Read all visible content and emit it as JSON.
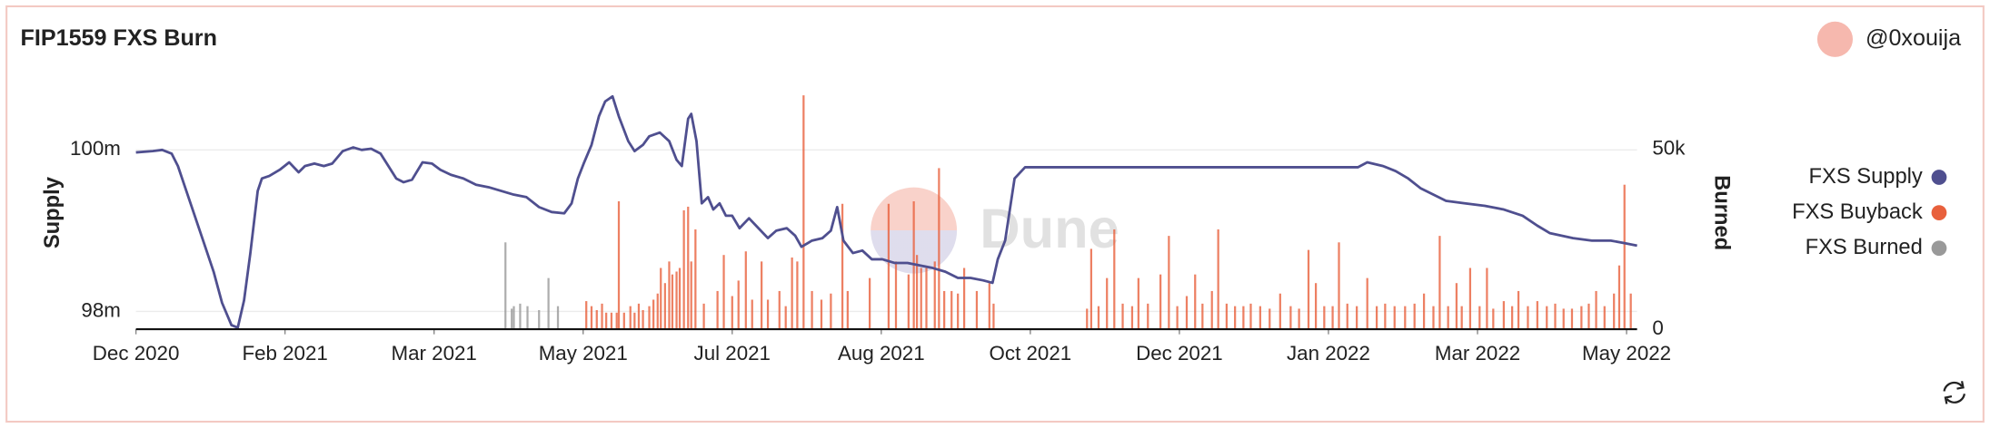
{
  "chart_data": {
    "type": "combo",
    "title": "FIP1559 FXS Burn",
    "author": "@0xouija",
    "watermark": "Dune",
    "ylabel": "Supply",
    "y2label": "Burned",
    "legend": "right",
    "grid": true,
    "xlim": [
      2020.92,
      2022.35
    ],
    "xticks": [
      {
        "value": 2020.92,
        "label": "Dec 2020"
      },
      {
        "value": 2021.062,
        "label": "Feb 2021"
      },
      {
        "value": 2021.204,
        "label": "Mar 2021"
      },
      {
        "value": 2021.346,
        "label": "May 2021"
      },
      {
        "value": 2021.488,
        "label": "Jul 2021"
      },
      {
        "value": 2021.63,
        "label": "Aug 2021"
      },
      {
        "value": 2021.772,
        "label": "Oct 2021"
      },
      {
        "value": 2021.914,
        "label": "Dec 2021"
      },
      {
        "value": 2022.056,
        "label": "Jan 2022"
      },
      {
        "value": 2022.198,
        "label": "Mar 2022"
      },
      {
        "value": 2022.34,
        "label": "May 2022"
      }
    ],
    "ylim": [
      97.78,
      100.68
    ],
    "yticks": [
      {
        "value": 98,
        "label": "98m"
      },
      {
        "value": 100,
        "label": "100m"
      }
    ],
    "y2lim": [
      0,
      65000
    ],
    "y2ticks": [
      0,
      {
        "value": 50000,
        "label": "50k"
      }
    ],
    "series": [
      {
        "name": "FXS Supply",
        "type": "line",
        "color": "#4f4f8f",
        "x": [
          2020.92,
          2020.936,
          2020.945,
          2020.954,
          2020.96,
          2020.966,
          2020.974,
          2020.984,
          2020.994,
          2021.002,
          2021.011,
          2021.017,
          2021.023,
          2021.029,
          2021.036,
          2021.04,
          2021.047,
          2021.057,
          2021.066,
          2021.075,
          2021.081,
          2021.09,
          2021.099,
          2021.107,
          2021.117,
          2021.127,
          2021.135,
          2021.144,
          2021.153,
          2021.159,
          2021.168,
          2021.175,
          2021.183,
          2021.193,
          2021.202,
          2021.21,
          2021.22,
          2021.232,
          2021.244,
          2021.256,
          2021.268,
          2021.28,
          2021.292,
          2021.304,
          2021.316,
          2021.328,
          2021.335,
          2021.341,
          2021.347,
          2021.354,
          2021.361,
          2021.367,
          2021.374,
          2021.38,
          2021.389,
          2021.395,
          2021.403,
          2021.409,
          2021.419,
          2021.428,
          2021.435,
          2021.44,
          2021.446,
          2021.449,
          2021.454,
          2021.459,
          2021.465,
          2021.47,
          2021.476,
          2021.482,
          2021.488,
          2021.495,
          2021.504,
          2021.513,
          2021.522,
          2021.53,
          2021.54,
          2021.548,
          2021.554,
          2021.564,
          2021.574,
          2021.582,
          2021.588,
          2021.594,
          2021.603,
          2021.612,
          2021.621,
          2021.631,
          2021.643,
          2021.655,
          2021.667,
          2021.679,
          2021.691,
          2021.703,
          2021.715,
          2021.727,
          2021.736,
          2021.741,
          2021.748,
          2021.757,
          2021.767,
          2021.818,
          2021.878,
          2021.951,
          2022.035,
          2022.084,
          2022.093,
          2022.108,
          2022.12,
          2022.132,
          2022.144,
          2022.156,
          2022.168,
          2022.186,
          2022.205,
          2022.223,
          2022.241,
          2022.255,
          2022.267,
          2022.289,
          2022.307,
          2022.325,
          2022.338,
          2022.35
        ],
        "values": [
          99.969,
          99.985,
          100.0,
          99.954,
          99.8,
          99.569,
          99.262,
          98.877,
          98.492,
          98.108,
          97.831,
          97.8,
          98.138,
          98.723,
          99.492,
          99.646,
          99.677,
          99.754,
          99.846,
          99.723,
          99.8,
          99.831,
          99.8,
          99.831,
          99.985,
          100.031,
          100.0,
          100.015,
          99.954,
          99.831,
          99.646,
          99.6,
          99.631,
          99.846,
          99.831,
          99.754,
          99.692,
          99.646,
          99.569,
          99.538,
          99.492,
          99.446,
          99.415,
          99.292,
          99.231,
          99.215,
          99.338,
          99.646,
          99.846,
          100.062,
          100.415,
          100.6,
          100.662,
          100.415,
          100.108,
          99.985,
          100.062,
          100.169,
          100.215,
          100.108,
          99.877,
          99.8,
          100.385,
          100.446,
          100.108,
          99.338,
          99.415,
          99.262,
          99.338,
          99.185,
          99.185,
          99.031,
          99.154,
          99.031,
          98.908,
          99.0,
          99.031,
          98.938,
          98.8,
          98.877,
          98.908,
          99.0,
          99.292,
          98.877,
          98.723,
          98.754,
          98.646,
          98.646,
          98.6,
          98.6,
          98.569,
          98.538,
          98.492,
          98.415,
          98.415,
          98.385,
          98.354,
          98.646,
          98.877,
          99.646,
          99.785,
          99.785,
          99.785,
          99.785,
          99.785,
          99.785,
          99.846,
          99.8,
          99.738,
          99.646,
          99.523,
          99.446,
          99.369,
          99.338,
          99.308,
          99.262,
          99.185,
          99.062,
          98.969,
          98.908,
          98.877,
          98.877,
          98.846,
          98.815
        ]
      },
      {
        "name": "FXS Buyback",
        "type": "bar",
        "axis": "y2",
        "color": "#e8603c",
        "x": [
          2021.349,
          2021.354,
          2021.359,
          2021.364,
          2021.368,
          2021.373,
          2021.378,
          2021.38,
          2021.385,
          2021.391,
          2021.395,
          2021.399,
          2021.403,
          2021.409,
          2021.413,
          2021.417,
          2021.42,
          2021.424,
          2021.428,
          2021.431,
          2021.435,
          2021.438,
          2021.442,
          2021.446,
          2021.449,
          2021.453,
          2021.461,
          2021.474,
          2021.48,
          2021.488,
          2021.494,
          2021.501,
          2021.507,
          2021.516,
          2021.522,
          2021.533,
          2021.539,
          2021.545,
          2021.55,
          2021.556,
          2021.564,
          2021.573,
          2021.582,
          2021.593,
          2021.598,
          2021.619,
          2021.637,
          2021.644,
          2021.656,
          2021.661,
          2021.664,
          2021.668,
          2021.673,
          2021.681,
          2021.685,
          2021.69,
          2021.697,
          2021.703,
          2021.709,
          2021.721,
          2021.733,
          2021.737,
          2021.826,
          2021.83,
          2021.837,
          2021.845,
          2021.852,
          2021.86,
          2021.869,
          2021.875,
          2021.884,
          2021.896,
          2021.904,
          2021.912,
          2021.921,
          2021.929,
          2021.936,
          2021.945,
          2021.951,
          2021.959,
          2021.967,
          2021.975,
          2021.982,
          2021.991,
          2022.0,
          2022.01,
          2022.02,
          2022.028,
          2022.037,
          2022.044,
          2022.052,
          2022.06,
          2022.066,
          2022.074,
          2022.083,
          2022.093,
          2022.102,
          2022.11,
          2022.119,
          2022.129,
          2022.138,
          2022.147,
          2022.156,
          2022.162,
          2022.17,
          2022.178,
          2022.183,
          2022.191,
          2022.2,
          2022.207,
          2022.213,
          2022.223,
          2022.231,
          2022.237,
          2022.246,
          2022.255,
          2022.264,
          2022.272,
          2022.28,
          2022.288,
          2022.297,
          2022.304,
          2022.311,
          2022.319,
          2022.328,
          2022.333,
          2022.338,
          2022.344
        ],
        "values": [
          7800,
          6400,
          5300,
          7100,
          4600,
          4600,
          4600,
          35500,
          4600,
          6400,
          4600,
          7100,
          5300,
          6400,
          8200,
          9900,
          17000,
          12800,
          18800,
          15200,
          16000,
          17000,
          33000,
          34000,
          18800,
          27700,
          7100,
          10600,
          20600,
          9200,
          13500,
          21600,
          8200,
          18800,
          8200,
          10600,
          6400,
          19900,
          18800,
          64900,
          10600,
          8200,
          9900,
          34800,
          10600,
          14200,
          34800,
          18800,
          15200,
          35500,
          20600,
          17000,
          17000,
          18800,
          44700,
          10600,
          10600,
          9900,
          17000,
          10600,
          12800,
          7100,
          5700,
          22300,
          6400,
          14200,
          27700,
          7100,
          6400,
          14200,
          7100,
          15200,
          25900,
          6400,
          9200,
          15200,
          7100,
          10600,
          27700,
          7100,
          6400,
          6400,
          7100,
          6400,
          5700,
          9900,
          6400,
          5700,
          22000,
          12800,
          6400,
          6400,
          24100,
          7100,
          6400,
          14200,
          6400,
          7100,
          6400,
          6400,
          7100,
          9900,
          6400,
          25900,
          6400,
          12800,
          6400,
          17000,
          6400,
          17000,
          5700,
          7800,
          6400,
          10600,
          6400,
          7800,
          6400,
          7100,
          5700,
          5700,
          6400,
          7100,
          10600,
          6400,
          9900,
          17700,
          40100,
          9900
        ]
      },
      {
        "name": "FXS Burned",
        "type": "bar",
        "axis": "y2",
        "color": "#999999",
        "x": [
          2021.272,
          2021.278,
          2021.28,
          2021.286,
          2021.293,
          2021.304,
          2021.313,
          2021.322
        ],
        "values": [
          24100,
          5700,
          6400,
          7100,
          6400,
          5300,
          14200,
          6400
        ]
      }
    ]
  }
}
